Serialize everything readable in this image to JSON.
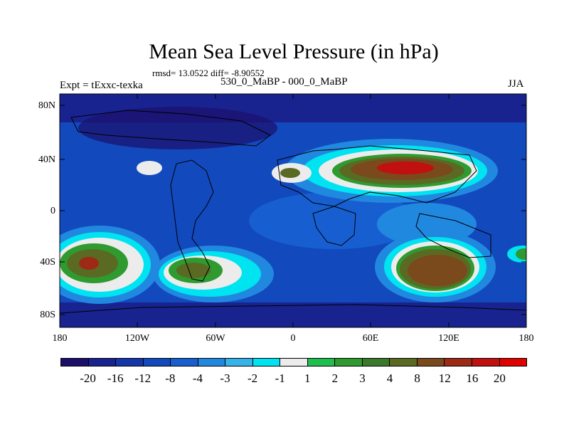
{
  "title": "Mean Sea Level Pressure (in hPa)",
  "stats": "rmsd= 13.0522 diff= -8.90552",
  "experiment": "Expt = tExxc-texka",
  "period": "530_0_MaBP - 000_0_MaBP",
  "season": "JJA",
  "lat_ticks": [
    "80N",
    "40N",
    "0",
    "40S",
    "80S"
  ],
  "lon_ticks": [
    "180",
    "120W",
    "60W",
    "0",
    "60E",
    "120E",
    "180"
  ],
  "colorbar": {
    "labels": [
      "-20",
      "-16",
      "-12",
      "-8",
      "-4",
      "-3",
      "-2",
      "-1",
      "1",
      "2",
      "3",
      "4",
      "8",
      "12",
      "16",
      "20"
    ],
    "colors": [
      "#1b0f6b",
      "#18238f",
      "#1336a8",
      "#1249bd",
      "#175fd0",
      "#2188e0",
      "#35b4ec",
      "#00e3f0",
      "#ececec",
      "#1fbf4d",
      "#2f9a2f",
      "#3a7a2a",
      "#5a6a23",
      "#7a4a1c",
      "#9c2a15",
      "#c01010",
      "#e00000"
    ]
  },
  "map_data": {
    "type": "filled-contour-map",
    "projection": "cylindrical-equidistant",
    "lon_range": [
      -180,
      180
    ],
    "lat_range": [
      -90,
      90
    ],
    "variable": "mean sea level pressure difference",
    "units": "hPa"
  }
}
